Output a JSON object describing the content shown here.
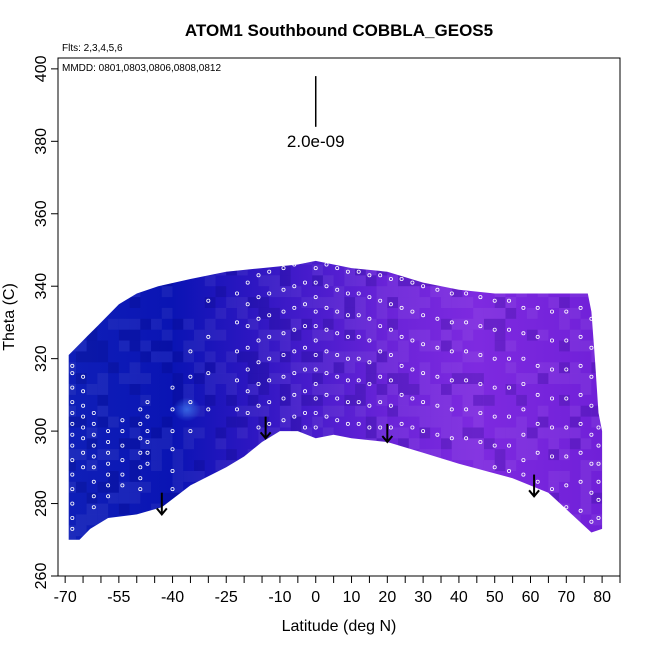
{
  "chart_data": {
    "type": "heatmap",
    "title": "ATOM1 Southbound COBBLA_GEOS5",
    "subtitle_flights": "Flts: 2,3,4,5,6",
    "subtitle_dates": "MMDD: 0801,0803,0806,0808,0812",
    "xlabel": "Latitude (deg N)",
    "ylabel": "Theta (C)",
    "xlim": [
      -72,
      85
    ],
    "ylim": [
      260,
      403
    ],
    "x_ticks": [
      -70,
      -55,
      -40,
      -25,
      -10,
      0,
      10,
      20,
      30,
      40,
      50,
      60,
      70,
      80
    ],
    "x_ticks_minor": [
      -65,
      -60,
      -50,
      -45,
      -35,
      -30,
      -20,
      -15,
      -5,
      5,
      15,
      25,
      35,
      45,
      55,
      65,
      75,
      85
    ],
    "y_ticks": [
      260,
      280,
      300,
      320,
      340,
      360,
      380,
      400
    ],
    "scale_bar": {
      "label": "2.0e-09",
      "x": 0,
      "y_top": 398,
      "y_bottom": 384
    },
    "top_envelope": [
      [
        -69,
        321
      ],
      [
        -67,
        323
      ],
      [
        -64,
        326
      ],
      [
        -61,
        329
      ],
      [
        -58,
        332
      ],
      [
        -55,
        335
      ],
      [
        -50,
        338
      ],
      [
        -44,
        340
      ],
      [
        -35,
        342
      ],
      [
        -25,
        344
      ],
      [
        -15,
        345
      ],
      [
        -5,
        346
      ],
      [
        0,
        347
      ],
      [
        10,
        345
      ],
      [
        20,
        344
      ],
      [
        30,
        341
      ],
      [
        40,
        339
      ],
      [
        50,
        338
      ],
      [
        60,
        338
      ],
      [
        70,
        338
      ],
      [
        76,
        338
      ],
      [
        77,
        333
      ],
      [
        78,
        320
      ],
      [
        79,
        305
      ],
      [
        80,
        300
      ]
    ],
    "bottom_envelope": [
      [
        80,
        273
      ],
      [
        77,
        272
      ],
      [
        65,
        283
      ],
      [
        55,
        287
      ],
      [
        40,
        291
      ],
      [
        30,
        294
      ],
      [
        20,
        297
      ],
      [
        10,
        298
      ],
      [
        5,
        299
      ],
      [
        0,
        298
      ],
      [
        -5,
        300
      ],
      [
        -10,
        300
      ],
      [
        -15,
        297
      ],
      [
        -20,
        293
      ],
      [
        -25,
        290
      ],
      [
        -35,
        285
      ],
      [
        -43,
        279
      ],
      [
        -50,
        277
      ],
      [
        -58,
        276
      ],
      [
        -63,
        273
      ],
      [
        -66,
        270
      ],
      [
        -69,
        270
      ]
    ],
    "color_stops": [
      {
        "lat": -70,
        "color": "#0f1fb8"
      },
      {
        "lat": -40,
        "color": "#0a14b4"
      },
      {
        "lat": -20,
        "color": "#2a16c0"
      },
      {
        "lat": 0,
        "color": "#4a1ccd"
      },
      {
        "lat": 20,
        "color": "#6a23d8"
      },
      {
        "lat": 45,
        "color": "#7e2ae0"
      },
      {
        "lat": 80,
        "color": "#7020d8"
      }
    ],
    "arrows": [
      {
        "lat": -43,
        "theta_top": 283,
        "theta_tip": 277
      },
      {
        "lat": -14,
        "theta_top": 304,
        "theta_tip": 298
      },
      {
        "lat": 20,
        "theta_top": 302,
        "theta_tip": 297
      },
      {
        "lat": 61,
        "theta_top": 288,
        "theta_tip": 282
      }
    ],
    "observations": [
      {
        "lat": -68,
        "thetas": [
          318,
          316,
          312,
          308,
          305,
          302,
          299,
          296,
          292,
          288,
          284,
          280,
          276,
          273
        ]
      },
      {
        "lat": -65,
        "thetas": [
          315,
          311,
          307,
          304,
          301,
          298,
          294,
          290
        ]
      },
      {
        "lat": -62,
        "thetas": [
          305,
          302,
          299,
          296,
          293,
          290,
          286,
          282,
          279
        ]
      },
      {
        "lat": -58,
        "thetas": [
          300,
          297,
          294,
          291,
          288,
          285,
          282
        ]
      },
      {
        "lat": -54,
        "thetas": [
          303,
          300,
          296,
          292,
          288,
          285
        ]
      },
      {
        "lat": -49,
        "thetas": [
          306,
          302,
          298,
          294,
          290,
          287,
          284
        ]
      },
      {
        "lat": -47,
        "thetas": [
          308,
          304,
          300,
          297,
          294,
          291
        ]
      },
      {
        "lat": -40,
        "thetas": [
          312,
          306,
          300,
          295,
          289,
          284
        ]
      },
      {
        "lat": -35,
        "thetas": [
          322,
          315,
          308,
          300
        ]
      },
      {
        "lat": -30,
        "thetas": [
          336,
          326,
          316,
          306
        ]
      },
      {
        "lat": -22,
        "thetas": [
          338,
          330,
          322,
          314,
          306
        ]
      },
      {
        "lat": -19,
        "thetas": [
          341,
          335,
          329,
          323,
          317,
          311,
          305
        ]
      },
      {
        "lat": -16,
        "thetas": [
          343,
          337,
          331,
          325,
          319,
          313,
          307,
          301
        ]
      },
      {
        "lat": -13,
        "thetas": [
          344,
          338,
          332,
          326,
          320,
          314,
          308,
          302
        ]
      },
      {
        "lat": -9,
        "thetas": [
          345,
          339,
          333,
          327,
          321,
          315,
          309,
          303
        ]
      },
      {
        "lat": -6,
        "thetas": [
          346,
          340,
          334,
          328,
          322,
          316,
          310,
          304
        ]
      },
      {
        "lat": -3,
        "thetas": [
          347,
          341,
          335,
          329,
          323,
          317,
          311,
          305,
          301
        ]
      },
      {
        "lat": 0,
        "thetas": [
          349,
          345,
          341,
          337,
          333,
          329,
          325,
          321,
          317,
          313,
          309,
          305,
          301
        ]
      },
      {
        "lat": 3,
        "thetas": [
          346,
          340,
          334,
          328,
          322,
          316,
          310,
          304
        ]
      },
      {
        "lat": 6,
        "thetas": [
          345,
          339,
          333,
          327,
          321,
          315,
          309,
          303
        ]
      },
      {
        "lat": 9,
        "thetas": [
          344,
          338,
          332,
          326,
          320,
          314,
          308,
          302
        ]
      },
      {
        "lat": 12,
        "thetas": [
          344,
          338,
          332,
          326,
          320,
          314,
          308,
          302
        ]
      },
      {
        "lat": 15,
        "thetas": [
          343,
          337,
          331,
          325,
          319,
          313,
          307,
          301
        ]
      },
      {
        "lat": 18,
        "thetas": [
          343,
          336,
          329,
          322,
          315,
          308,
          301
        ]
      },
      {
        "lat": 21,
        "thetas": [
          342,
          335,
          328,
          321,
          314,
          307,
          301
        ]
      },
      {
        "lat": 24,
        "thetas": [
          342,
          334,
          326,
          318,
          310,
          302
        ]
      },
      {
        "lat": 27,
        "thetas": [
          341,
          333,
          325,
          317,
          309,
          301
        ]
      },
      {
        "lat": 30,
        "thetas": [
          340,
          332,
          324,
          316,
          308,
          300
        ]
      },
      {
        "lat": 34,
        "thetas": [
          339,
          331,
          323,
          315,
          307,
          299
        ]
      },
      {
        "lat": 38,
        "thetas": [
          338,
          330,
          322,
          314,
          306,
          298
        ]
      },
      {
        "lat": 42,
        "thetas": [
          338,
          330,
          322,
          314,
          306,
          298
        ]
      },
      {
        "lat": 46,
        "thetas": [
          337,
          329,
          321,
          313,
          305,
          297
        ]
      },
      {
        "lat": 50,
        "thetas": [
          336,
          328,
          320,
          312,
          304,
          296,
          290
        ]
      },
      {
        "lat": 54,
        "thetas": [
          336,
          328,
          320,
          312,
          304,
          296,
          289
        ]
      },
      {
        "lat": 58,
        "thetas": [
          334,
          327,
          320,
          313,
          306,
          299,
          292,
          288
        ]
      },
      {
        "lat": 62,
        "thetas": [
          334,
          326,
          318,
          310,
          302,
          294,
          286
        ]
      },
      {
        "lat": 66,
        "thetas": [
          333,
          325,
          317,
          309,
          301,
          293,
          284
        ]
      },
      {
        "lat": 70,
        "thetas": [
          333,
          325,
          317,
          309,
          301,
          293,
          285,
          279
        ]
      },
      {
        "lat": 74,
        "thetas": [
          334,
          326,
          318,
          310,
          302,
          294,
          286,
          278
        ]
      },
      {
        "lat": 77,
        "thetas": [
          331,
          323,
          315,
          307,
          299,
          291,
          283,
          275
        ]
      },
      {
        "lat": 79,
        "thetas": [
          301,
          296,
          291,
          286,
          281,
          276
        ]
      }
    ]
  }
}
